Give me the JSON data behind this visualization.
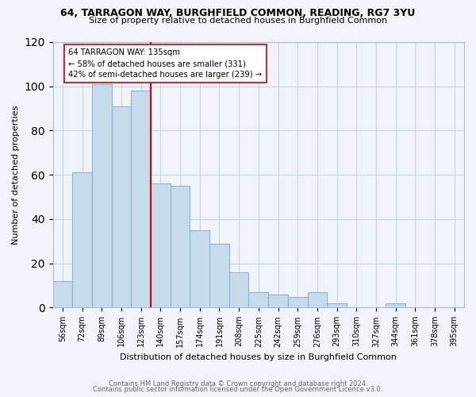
{
  "title1": "64, TARRAGON WAY, BURGHFIELD COMMON, READING, RG7 3YU",
  "title2": "Size of property relative to detached houses in Burghfield Common",
  "xlabel": "Distribution of detached houses by size in Burghfield Common",
  "ylabel": "Number of detached properties",
  "bin_labels": [
    "56sqm",
    "72sqm",
    "89sqm",
    "106sqm",
    "123sqm",
    "140sqm",
    "157sqm",
    "174sqm",
    "191sqm",
    "208sqm",
    "225sqm",
    "242sqm",
    "259sqm",
    "276sqm",
    "293sqm",
    "310sqm",
    "327sqm",
    "344sqm",
    "361sqm",
    "378sqm",
    "395sqm"
  ],
  "bar_heights": [
    12,
    61,
    101,
    91,
    98,
    56,
    55,
    35,
    29,
    16,
    7,
    6,
    5,
    7,
    2,
    0,
    0,
    2,
    0,
    0,
    0
  ],
  "bar_color": "#c6dcec",
  "bar_edge_color": "#8ab4d4",
  "vline_x": 4.5,
  "vline_color": "#cc0000",
  "annotation_text": "64 TARRAGON WAY: 135sqm\n← 58% of detached houses are smaller (331)\n42% of semi-detached houses are larger (239) →",
  "annotation_box_color": "#ffffff",
  "annotation_box_edge": "#cc0000",
  "ylim": [
    0,
    120
  ],
  "yticks": [
    0,
    20,
    40,
    60,
    80,
    100,
    120
  ],
  "footer1": "Contains HM Land Registry data © Crown copyright and database right 2024.",
  "footer2": "Contains public sector information licensed under the Open Government Licence v3.0.",
  "bg_color": "#f0f4fa",
  "grid_color": "#c8d4e8"
}
